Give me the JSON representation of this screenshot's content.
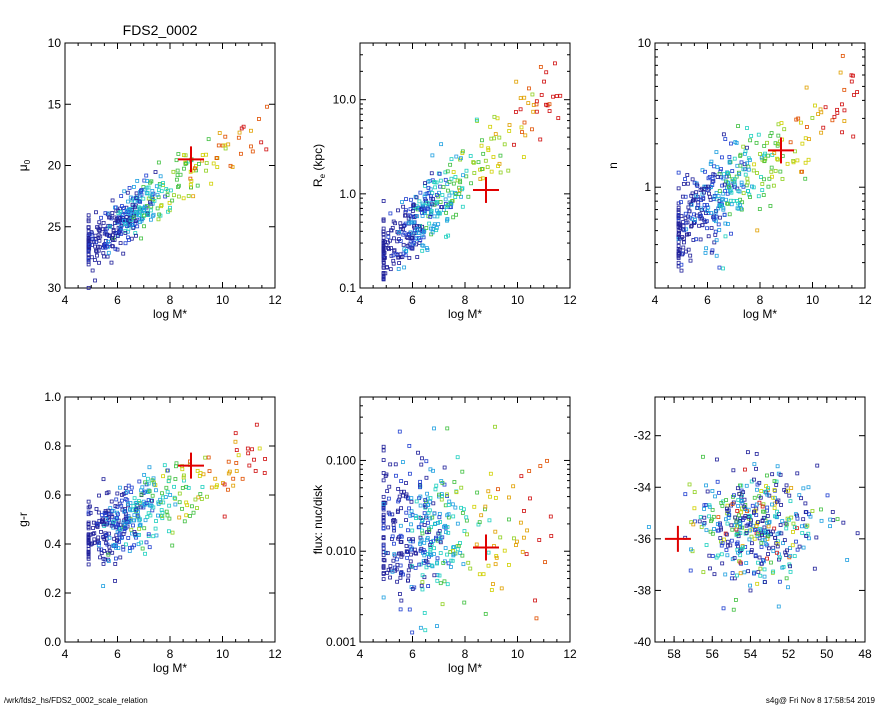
{
  "figure": {
    "footer_left": "/wrk/fds2_hs/FDS2_0002_scale_relation",
    "footer_right": "s4g@  Fri Nov  8 17:58:54 2019"
  },
  "colors": {
    "highlight": "#e00000",
    "marker_palette": [
      "#20209a",
      "#2040d0",
      "#20a0e0",
      "#20d0c0",
      "#40c040",
      "#90d020",
      "#d0d000",
      "#e0a000",
      "#e05000",
      "#d01010"
    ]
  },
  "chart_data": [
    {
      "id": "mu0",
      "type": "scatter",
      "title": "FDS2_0002",
      "xlabel": "log M*",
      "ylabel": "μ",
      "ylabel_sub": "0",
      "xlim": [
        4,
        12
      ],
      "ylim": [
        30,
        10
      ],
      "yscale": "linear",
      "y_inverted": true,
      "xticks": [
        4,
        6,
        8,
        10,
        12
      ],
      "yticks": [
        10,
        15,
        20,
        25,
        30
      ],
      "ytick_labels": [
        "10",
        "15",
        "20",
        "25",
        "30"
      ],
      "highlight": {
        "x": 8.8,
        "y": 19.5
      },
      "seed": 11
    },
    {
      "id": "re",
      "type": "scatter",
      "title": "",
      "xlabel": "log M*",
      "ylabel": "R",
      "ylabel_sub": "e",
      "ylabel_tail": " (kpc)",
      "xlim": [
        4,
        12
      ],
      "ylim": [
        0.1,
        40
      ],
      "yscale": "log",
      "xticks": [
        4,
        6,
        8,
        10,
        12
      ],
      "yticks": [
        0.1,
        1.0,
        10.0
      ],
      "ytick_labels": [
        "0.1",
        "1.0",
        "10.0"
      ],
      "highlight": {
        "x": 8.8,
        "y": 1.1
      },
      "seed": 23
    },
    {
      "id": "n",
      "type": "scatter",
      "title": "",
      "xlabel": "log M*",
      "ylabel": "n",
      "xlim": [
        4,
        12
      ],
      "ylim": [
        0.2,
        10
      ],
      "yscale": "log",
      "xticks": [
        4,
        6,
        8,
        10,
        12
      ],
      "yticks": [
        1,
        10
      ],
      "ytick_labels": [
        "1",
        "10"
      ],
      "highlight": {
        "x": 8.8,
        "y": 1.8
      },
      "seed": 37
    },
    {
      "id": "gr",
      "type": "scatter",
      "title": "",
      "xlabel": "log M*",
      "ylabel": "g-r",
      "xlim": [
        4,
        12
      ],
      "ylim": [
        0.0,
        1.0
      ],
      "yscale": "linear",
      "xticks": [
        4,
        6,
        8,
        10,
        12
      ],
      "yticks": [
        0.0,
        0.2,
        0.4,
        0.6,
        0.8,
        1.0
      ],
      "ytick_labels": [
        "0.0",
        "0.2",
        "0.4",
        "0.6",
        "0.8",
        "1.0"
      ],
      "highlight": {
        "x": 8.8,
        "y": 0.72
      },
      "seed": 41
    },
    {
      "id": "flux",
      "type": "scatter",
      "title": "",
      "xlabel": "log M*",
      "ylabel": "flux: nuc/disk",
      "xlim": [
        4,
        12
      ],
      "ylim": [
        0.001,
        0.5
      ],
      "yscale": "log",
      "xticks": [
        4,
        6,
        8,
        10,
        12
      ],
      "yticks": [
        0.001,
        0.01,
        0.1
      ],
      "ytick_labels": [
        "0.001",
        "0.010",
        "0.100"
      ],
      "highlight": {
        "x": 8.8,
        "y": 0.011
      },
      "seed": 53
    },
    {
      "id": "radec",
      "type": "scatter",
      "title": "",
      "xlabel": "",
      "ylabel": "",
      "xlim": [
        59,
        48
      ],
      "ylim": [
        -40,
        -30.5
      ],
      "yscale": "linear",
      "x_inverted": true,
      "xticks": [
        58,
        56,
        54,
        52,
        50,
        48
      ],
      "yticks": [
        -40,
        -38,
        -36,
        -34,
        -32
      ],
      "ytick_labels": [
        "-40",
        "-38",
        "-36",
        "-34",
        "-32"
      ],
      "highlight": {
        "x": 57.8,
        "y": -36.0
      },
      "seed": 67
    }
  ]
}
